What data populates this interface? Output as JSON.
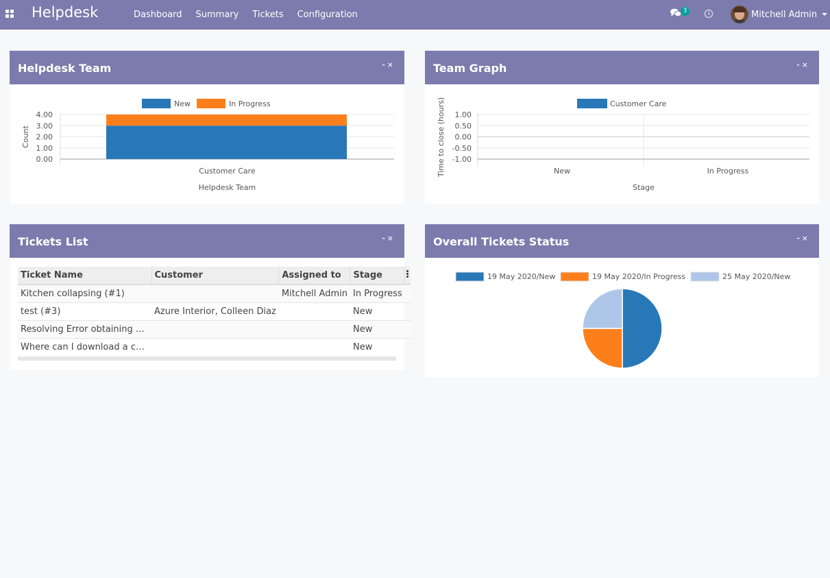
{
  "navbar": {
    "app_title": "Helpdesk",
    "menu": [
      "Dashboard",
      "Summary",
      "Tickets",
      "Configuration"
    ],
    "chat_count": "3",
    "user_name": "Mitchell Admin",
    "icons": [
      "apps-icon",
      "chat-icon",
      "clock-icon",
      "avatar",
      "caret-down-icon"
    ]
  },
  "panels": {
    "helpdesk_team": {
      "title": "Helpdesk Team",
      "minimize": "-",
      "close": "×"
    },
    "team_graph": {
      "title": "Team Graph",
      "minimize": "-",
      "close": "×"
    },
    "tickets_list": {
      "title": "Tickets List",
      "minimize": "-",
      "close": "×"
    },
    "overall_status": {
      "title": "Overall Tickets Status",
      "minimize": "-",
      "close": "×"
    }
  },
  "tickets": {
    "columns": [
      "Ticket Name",
      "Customer",
      "Assigned to",
      "Stage"
    ],
    "rows": [
      [
        "Kitchen collapsing (#1)",
        "",
        "Mitchell Admin",
        "In Progress"
      ],
      [
        "test (#3)",
        "Azure Interior, Colleen Diaz",
        "",
        "New"
      ],
      [
        "Resolving Error obtaining dep…",
        "",
        "",
        "New"
      ],
      [
        "Where can I download a catal…",
        "",
        "",
        "New"
      ]
    ]
  },
  "chart_data": [
    {
      "type": "bar",
      "stacked": true,
      "categories": [
        "Customer Care"
      ],
      "series": [
        {
          "name": "New",
          "values": [
            3
          ],
          "color": "#2878b8"
        },
        {
          "name": "In Progress",
          "values": [
            1
          ],
          "color": "#fd7f1c"
        }
      ],
      "xlabel": "Helpdesk Team",
      "ylabel": "Count",
      "ylim": [
        0,
        4
      ],
      "yticks": [
        "0.00",
        "1.00",
        "2.00",
        "3.00",
        "4.00"
      ],
      "legend": "top-center"
    },
    {
      "type": "bar",
      "categories": [
        "New",
        "In Progress"
      ],
      "series": [
        {
          "name": "Customer Care",
          "values": [
            0,
            0
          ],
          "color": "#2878b8"
        }
      ],
      "xlabel": "Stage",
      "ylabel": "Time to close (hours)",
      "ylim": [
        -1,
        1
      ],
      "yticks": [
        "1.00",
        "0.50",
        "0.00",
        "-0.50",
        "-1.00"
      ],
      "legend": "top-center"
    },
    {
      "type": "pie",
      "labels": [
        "19 May 2020/New",
        "19 May 2020/In Progress",
        "25 May 2020/New"
      ],
      "values": [
        2,
        1,
        1
      ],
      "colors": [
        "#2878b8",
        "#fd7f1c",
        "#aec7e8"
      ],
      "legend": "top-center"
    }
  ]
}
